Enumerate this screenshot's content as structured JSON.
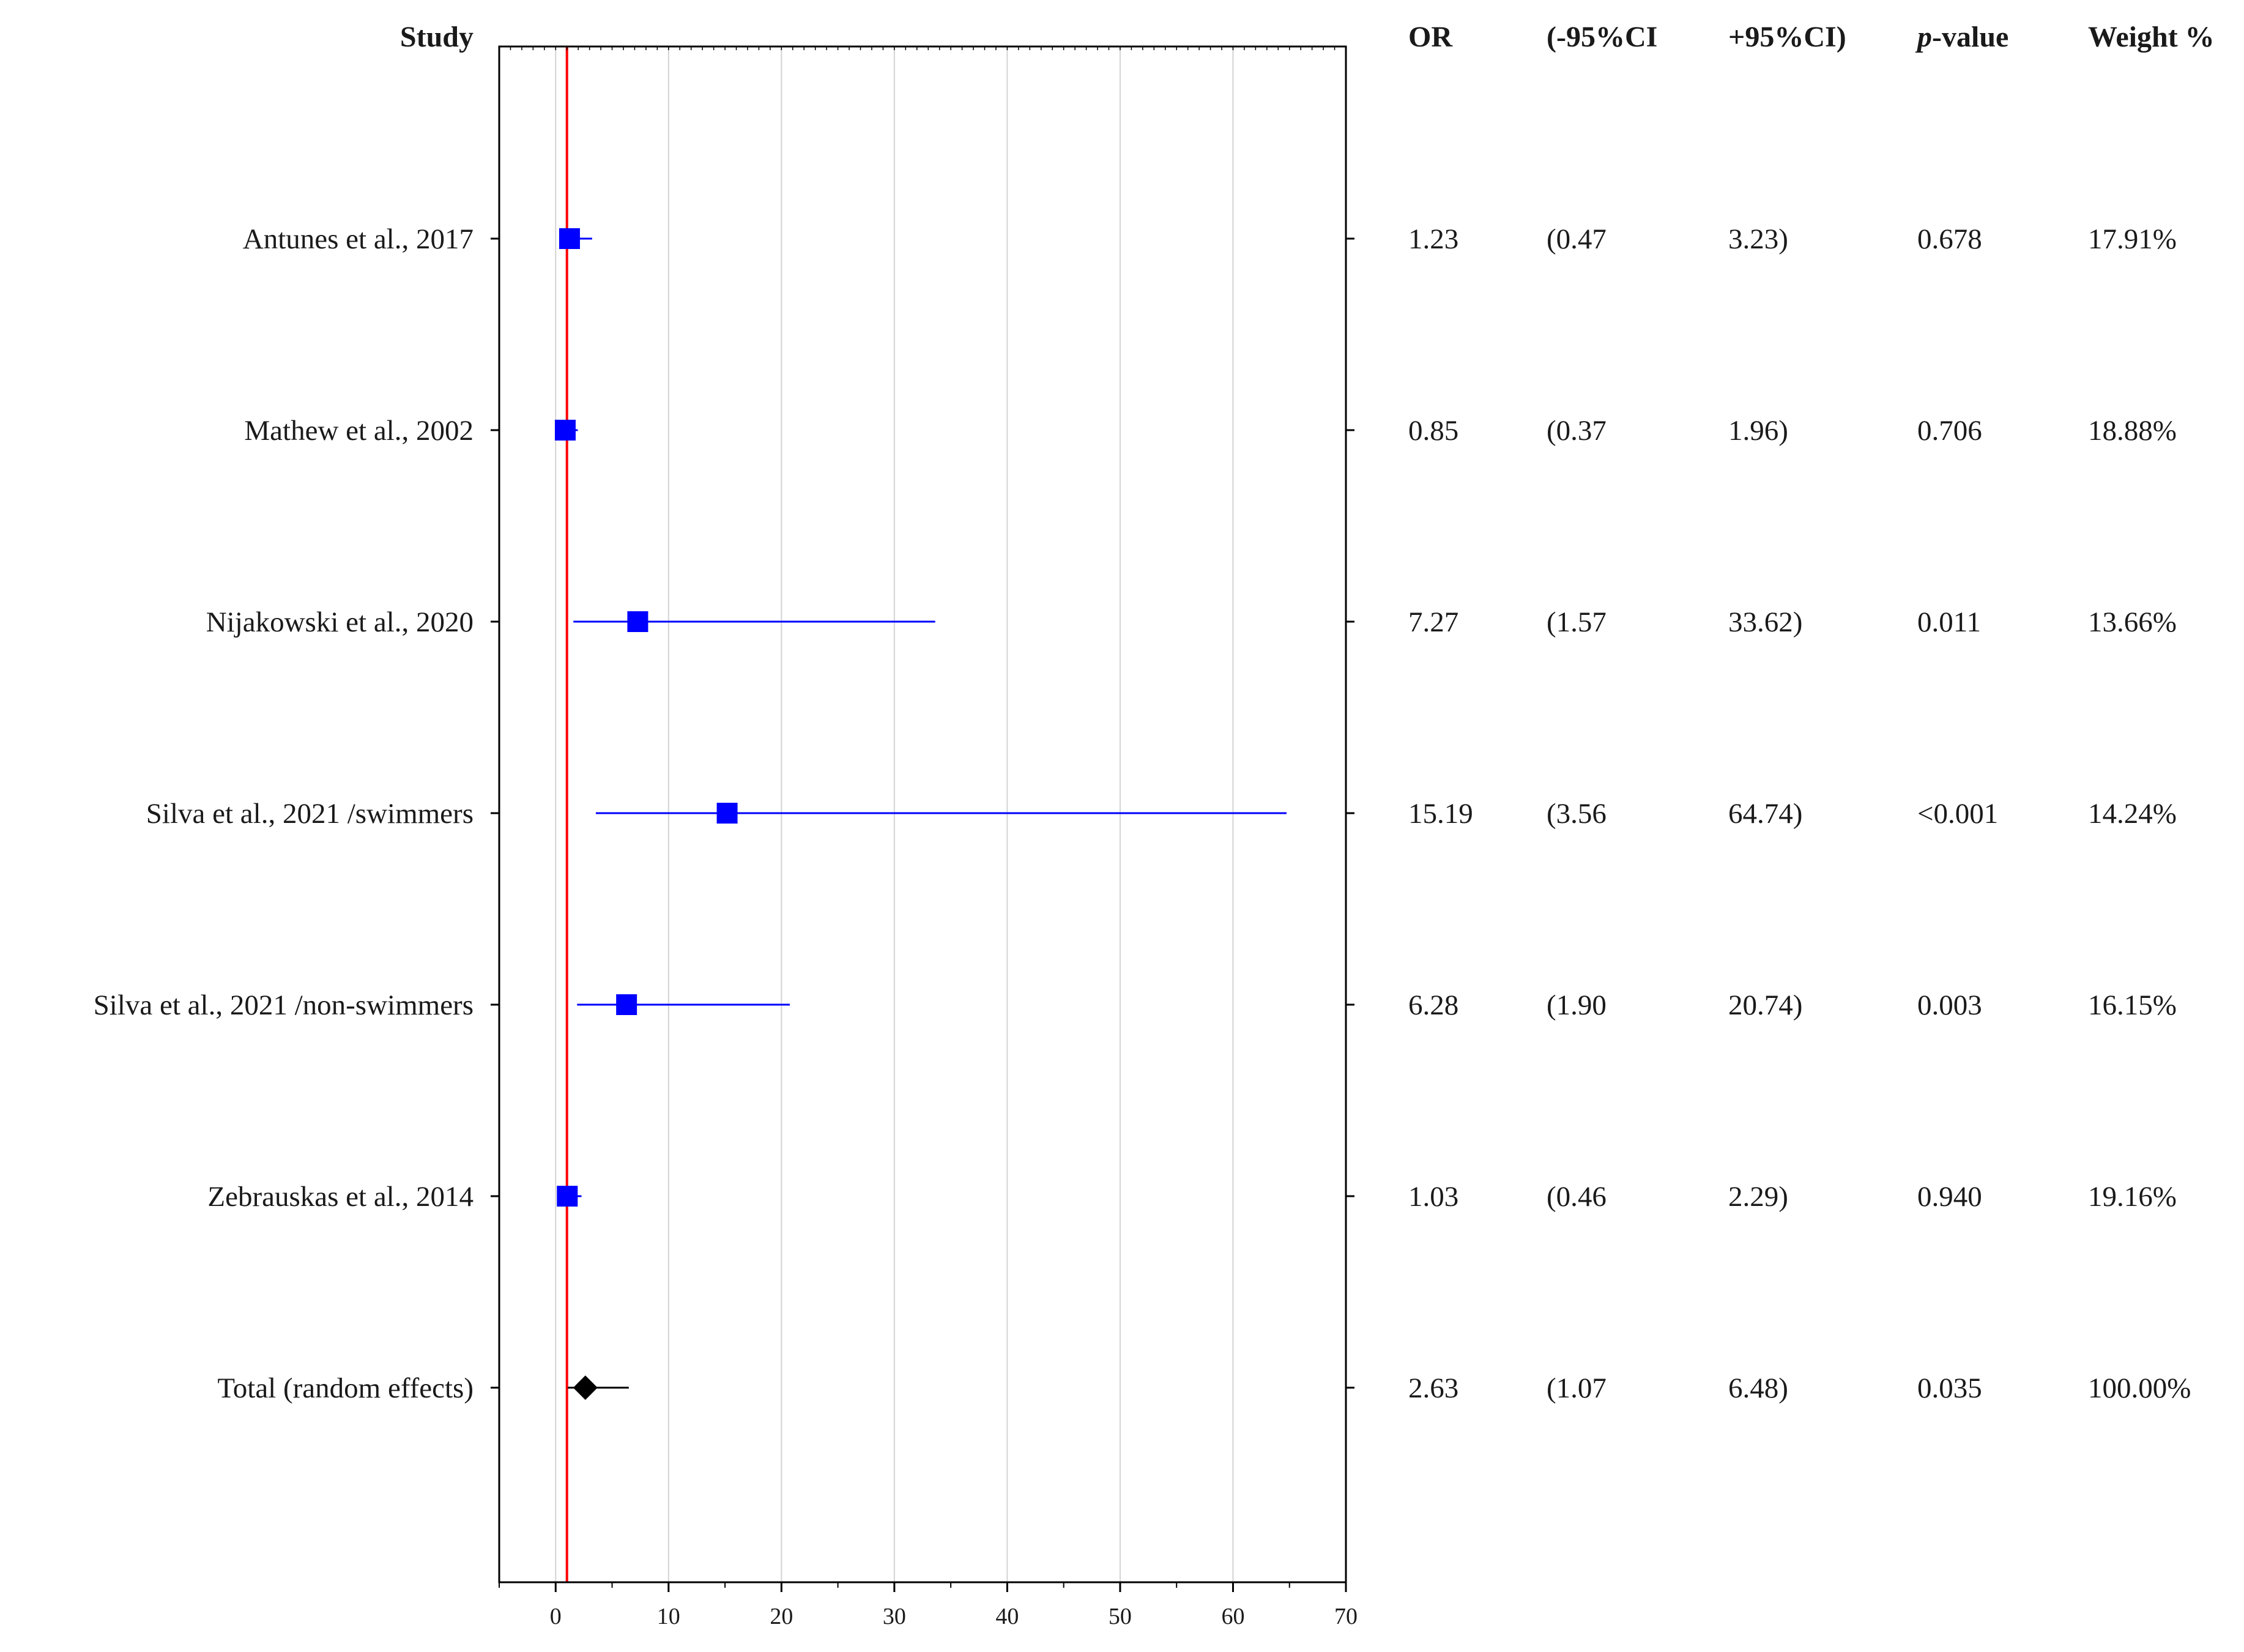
{
  "chart_data": {
    "type": "forest",
    "x_axis": {
      "range": [
        -5,
        70
      ],
      "ticks": [
        0,
        10,
        20,
        30,
        40,
        50,
        60,
        70
      ],
      "reference_line": 1,
      "gridlines": true
    },
    "headers": {
      "study": "Study",
      "or": "OR",
      "lower": "(-95%CI",
      "upper": "+95%CI)",
      "p_value_italic": "p",
      "p_value_rest": "-value",
      "weight": "Weight %"
    },
    "studies": [
      {
        "name": "Antunes et al., 2017",
        "or": 1.23,
        "lower": 0.47,
        "upper": 3.23,
        "or_text": "1.23",
        "lower_text": "(0.47",
        "upper_text": "3.23)",
        "p": "0.678",
        "weight": "17.91%"
      },
      {
        "name": "Mathew et al., 2002",
        "or": 0.85,
        "lower": 0.37,
        "upper": 1.96,
        "or_text": "0.85",
        "lower_text": "(0.37",
        "upper_text": "1.96)",
        "p": "0.706",
        "weight": "18.88%"
      },
      {
        "name": "Nijakowski et al., 2020",
        "or": 7.27,
        "lower": 1.57,
        "upper": 33.62,
        "or_text": "7.27",
        "lower_text": "(1.57",
        "upper_text": "33.62)",
        "p": "0.011",
        "weight": "13.66%"
      },
      {
        "name": "Silva et al., 2021 /swimmers",
        "or": 15.19,
        "lower": 3.56,
        "upper": 64.74,
        "or_text": "15.19",
        "lower_text": "(3.56",
        "upper_text": "64.74)",
        "p": "<0.001",
        "weight": "14.24%"
      },
      {
        "name": "Silva et al., 2021 /non-swimmers",
        "or": 6.28,
        "lower": 1.9,
        "upper": 20.74,
        "or_text": "6.28",
        "lower_text": "(1.90",
        "upper_text": "20.74)",
        "p": "0.003",
        "weight": "16.15%"
      },
      {
        "name": "Zebrauskas et al., 2014",
        "or": 1.03,
        "lower": 0.46,
        "upper": 2.29,
        "or_text": "1.03",
        "lower_text": "(0.46",
        "upper_text": "2.29)",
        "p": "0.940",
        "weight": "19.16%"
      }
    ],
    "total": {
      "name": "Total (random effects)",
      "or": 2.63,
      "lower": 1.07,
      "upper": 6.48,
      "or_text": "2.63",
      "lower_text": "(1.07",
      "upper_text": "6.48)",
      "p": "0.035",
      "weight": "100.00%"
    },
    "colors": {
      "study_marker": "#0000ff",
      "total_marker": "#000000",
      "reference_line": "#ff0000",
      "gridline": "#d3d3d3"
    }
  }
}
